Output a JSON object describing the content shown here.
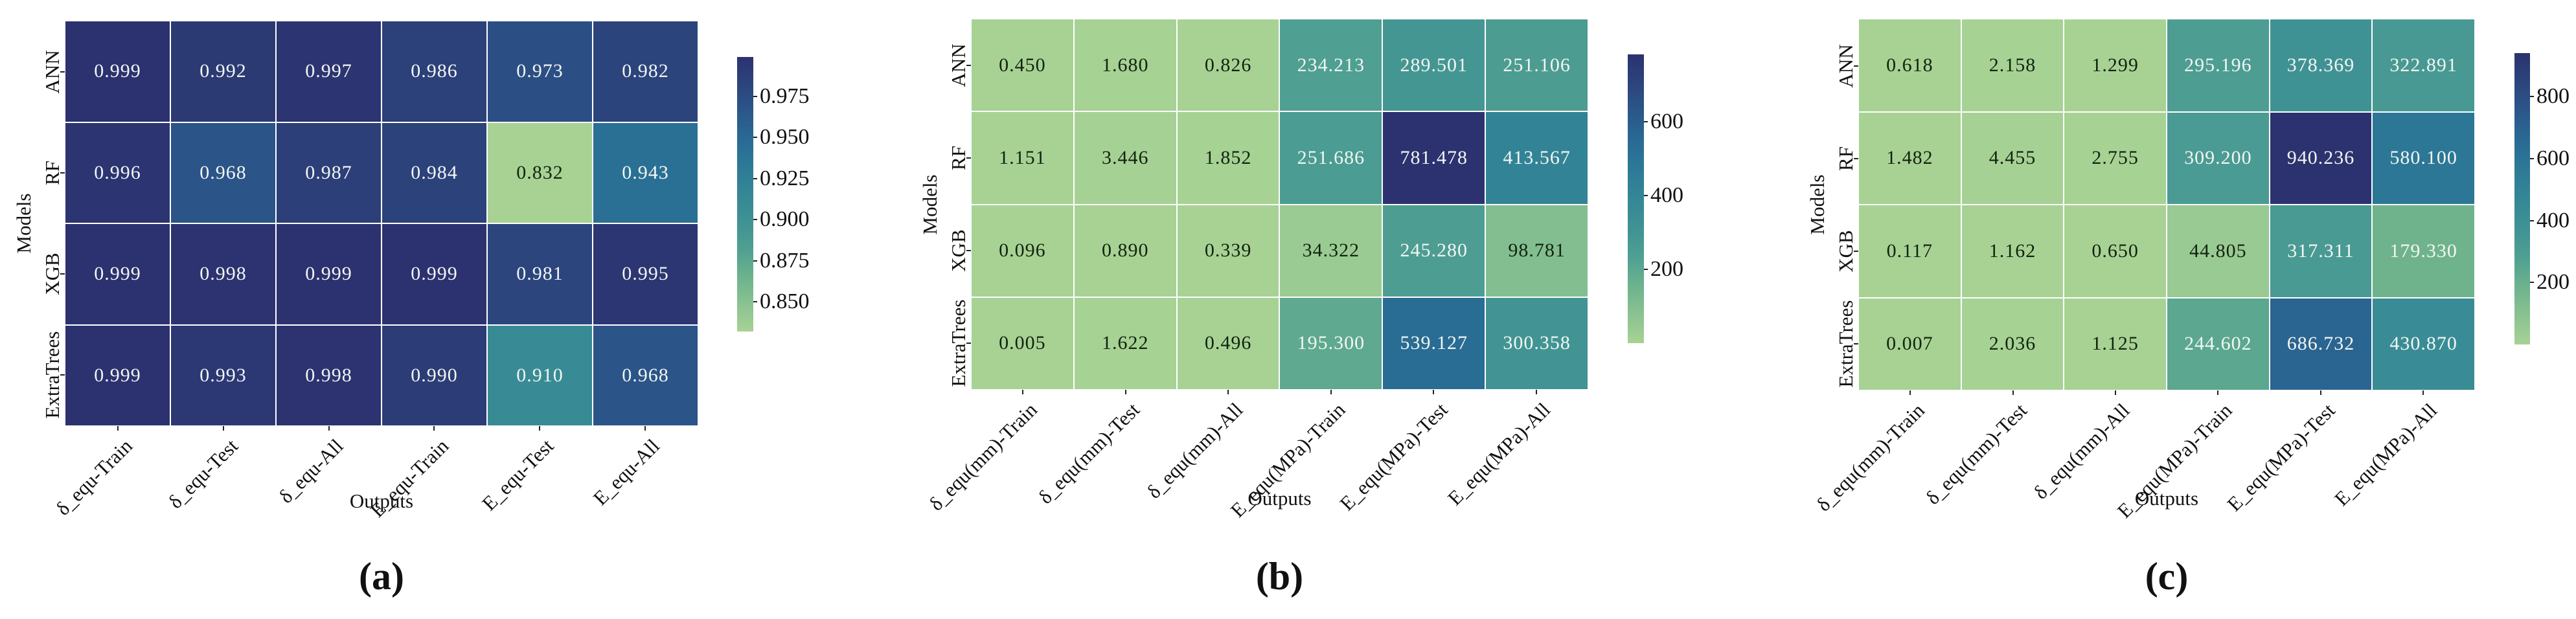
{
  "figure": {
    "background": "#ffffff",
    "description": "Three annotated heatmaps comparing ML models across outputs"
  },
  "chart_data": [
    {
      "type": "heatmap",
      "panel": "a",
      "caption": "(a)",
      "xlabel": "Outputs",
      "ylabel": "Models",
      "rows": [
        "ANN",
        "RF",
        "XGB",
        "ExtraTrees"
      ],
      "columns": [
        "δ_equ-Train",
        "δ_equ-Test",
        "δ_equ-All",
        "E_equ-Train",
        "E_equ-Test",
        "E_equ-All"
      ],
      "values": [
        [
          "0.999",
          "0.992",
          "0.997",
          "0.986",
          "0.973",
          "0.982"
        ],
        [
          "0.996",
          "0.968",
          "0.987",
          "0.984",
          "0.832",
          "0.943"
        ],
        [
          "0.999",
          "0.998",
          "0.999",
          "0.999",
          "0.981",
          "0.995"
        ],
        [
          "0.999",
          "0.993",
          "0.998",
          "0.990",
          "0.910",
          "0.968"
        ]
      ],
      "vmin": 0.832,
      "vmax": 0.999,
      "colorbar_ticks": [
        "0.975",
        "0.950",
        "0.925",
        "0.900",
        "0.875",
        "0.850"
      ],
      "legend_position": "right-colorbar",
      "grid": false
    },
    {
      "type": "heatmap",
      "panel": "b",
      "caption": "(b)",
      "xlabel": "Outputs",
      "ylabel": "Models",
      "rows": [
        "ANN",
        "RF",
        "XGB",
        "ExtraTrees"
      ],
      "columns": [
        "δ_equ(mm)-Train",
        "δ_equ(mm)-Test",
        "δ_equ(mm)-All",
        "E_equ(MPa)-Train",
        "E_equ(MPa)-Test",
        "E_equ(MPa)-All"
      ],
      "values": [
        [
          "0.450",
          "1.680",
          "0.826",
          "234.213",
          "289.501",
          "251.106"
        ],
        [
          "1.151",
          "3.446",
          "1.852",
          "251.686",
          "781.478",
          "413.567"
        ],
        [
          "0.096",
          "0.890",
          "0.339",
          "34.322",
          "245.280",
          "98.781"
        ],
        [
          "0.005",
          "1.622",
          "0.496",
          "195.300",
          "539.127",
          "300.358"
        ]
      ],
      "vmin": 0.005,
      "vmax": 781.478,
      "colorbar_ticks": [
        "600",
        "400",
        "200"
      ],
      "legend_position": "right-colorbar",
      "grid": false
    },
    {
      "type": "heatmap",
      "panel": "c",
      "caption": "(c)",
      "xlabel": "Outputs",
      "ylabel": "Models",
      "rows": [
        "ANN",
        "RF",
        "XGB",
        "ExtraTrees"
      ],
      "columns": [
        "δ_equ(mm)-Train",
        "δ_equ(mm)-Test",
        "δ_equ(mm)-All",
        "E_equ(MPa)-Train",
        "E_equ(MPa)-Test",
        "E_equ(MPa)-All"
      ],
      "values": [
        [
          "0.618",
          "2.158",
          "1.299",
          "295.196",
          "378.369",
          "322.891"
        ],
        [
          "1.482",
          "4.455",
          "2.755",
          "309.200",
          "940.236",
          "580.100"
        ],
        [
          "0.117",
          "1.162",
          "0.650",
          "44.805",
          "317.311",
          "179.330"
        ],
        [
          "0.007",
          "2.036",
          "1.125",
          "244.602",
          "686.732",
          "430.870"
        ]
      ],
      "vmin": 0.007,
      "vmax": 940.236,
      "colorbar_ticks": [
        "800",
        "600",
        "400",
        "200"
      ],
      "legend_position": "right-colorbar",
      "grid": false
    }
  ],
  "colors": {
    "colormap_name": "crest-like (light green to dark navy)",
    "cmap_stops": [
      "#a7d294",
      "#8ac291",
      "#6cb28d",
      "#4f9f92",
      "#3f9294",
      "#348795",
      "#2d7a97",
      "#296a94",
      "#2b578a",
      "#2c447c",
      "#2c326f"
    ],
    "annotation_light": "#f2f6f2",
    "annotation_dark": "#13230f",
    "tick_color": "#222222"
  }
}
